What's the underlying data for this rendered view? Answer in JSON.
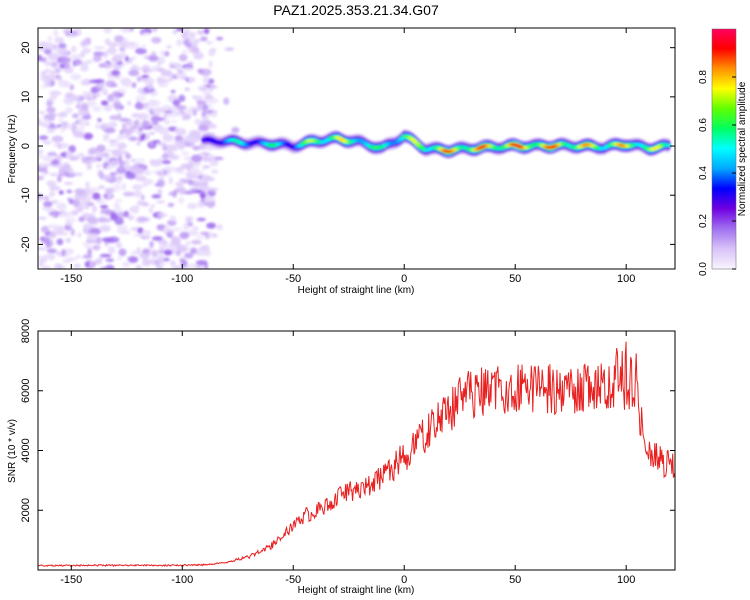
{
  "title": "PAZ1.2025.353.21.34.G07",
  "chart_data": [
    {
      "type": "heatmap",
      "xlabel": "Height of straight line (km)",
      "ylabel": "Frequency (Hz)",
      "xlim": [
        -165,
        122
      ],
      "ylim": [
        -25,
        24
      ],
      "xticks": [
        -150,
        -100,
        -50,
        0,
        50,
        100
      ],
      "yticks": [
        -20,
        -10,
        0,
        10,
        20
      ],
      "noise_region_x": [
        -165,
        -85
      ],
      "ridge": {
        "x": [
          -90,
          -80,
          -70,
          -60,
          -50,
          -40,
          -30,
          -20,
          -10,
          0,
          10,
          20,
          30,
          40,
          50,
          60,
          70,
          80,
          90,
          100,
          110,
          120
        ],
        "freq": [
          1.0,
          1.0,
          0.6,
          0.5,
          0.0,
          1.0,
          1.5,
          0.8,
          -0.5,
          2.0,
          -0.6,
          -0.8,
          -0.5,
          -0.2,
          0.0,
          0.0,
          0.1,
          0.0,
          -0.2,
          0.4,
          -0.4,
          0.0
        ],
        "amplitude": [
          0.3,
          0.6,
          0.5,
          0.6,
          0.5,
          0.8,
          0.8,
          0.7,
          0.6,
          0.7,
          0.8,
          0.9,
          0.9,
          0.9,
          0.95,
          0.95,
          0.9,
          0.85,
          0.8,
          0.85,
          0.8,
          0.7
        ]
      },
      "colorbar": {
        "label": "Normalized spectral amplitude",
        "ticks": [
          "0.0",
          "0.2",
          "0.4",
          "0.6",
          "0.8"
        ],
        "range": [
          0,
          1
        ],
        "colors": [
          "#f8f4ff",
          "#d8c2f8",
          "#a070f0",
          "#7000e0",
          "#0000ff",
          "#00a8ff",
          "#00ffff",
          "#00ff60",
          "#60ff00",
          "#ffff00",
          "#ff9000",
          "#ff0000",
          "#ff0060"
        ]
      }
    },
    {
      "type": "line",
      "xlabel": "Height of straight line (km)",
      "ylabel": "SNR (10 * v/v)",
      "xlim": [
        -165,
        122
      ],
      "ylim": [
        0,
        8000
      ],
      "xticks": [
        -150,
        -100,
        -50,
        0,
        50,
        100
      ],
      "yticks": [
        2000,
        4000,
        6000,
        8000
      ],
      "series": [
        {
          "name": "SNR",
          "color": "#e82020",
          "x": [
            -165,
            -150,
            -140,
            -130,
            -120,
            -110,
            -100,
            -90,
            -80,
            -75,
            -70,
            -65,
            -60,
            -55,
            -50,
            -45,
            -40,
            -35,
            -30,
            -25,
            -20,
            -15,
            -10,
            -5,
            0,
            5,
            10,
            15,
            20,
            25,
            30,
            40,
            50,
            60,
            70,
            80,
            90,
            95,
            100,
            105,
            107,
            110,
            115,
            122
          ],
          "y": [
            150,
            150,
            160,
            150,
            160,
            150,
            160,
            170,
            250,
            350,
            450,
            600,
            800,
            1100,
            1500,
            1800,
            2000,
            2200,
            2400,
            2600,
            2700,
            2900,
            3100,
            3400,
            3800,
            4200,
            4600,
            4900,
            5300,
            5700,
            5900,
            6000,
            6100,
            6100,
            6050,
            6100,
            6150,
            6300,
            6500,
            6200,
            4800,
            4000,
            3700,
            3400
          ]
        }
      ]
    }
  ]
}
